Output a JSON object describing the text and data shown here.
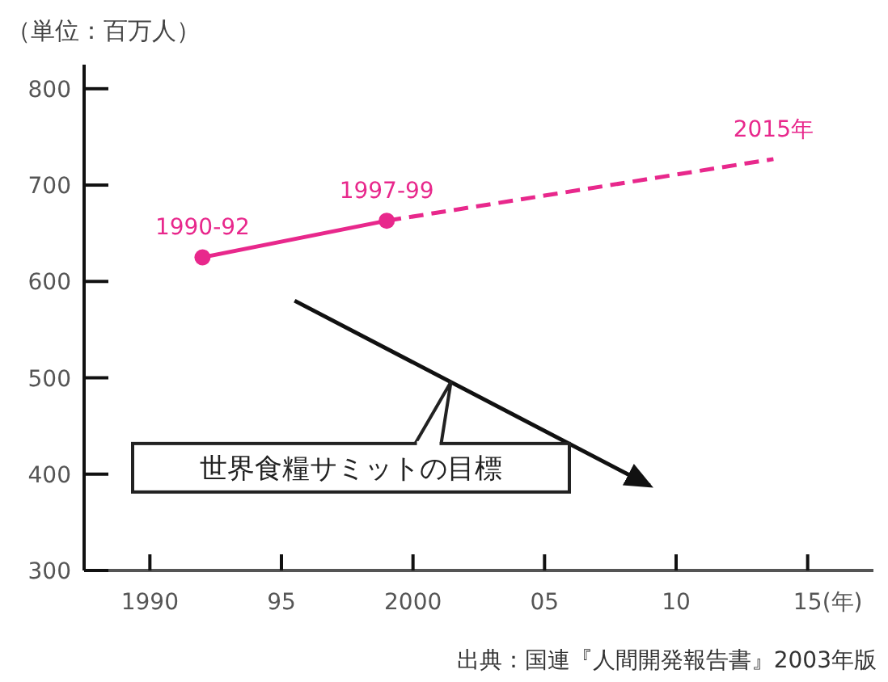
{
  "chart_data": {
    "type": "line",
    "ylabel": "（単位：百万人）",
    "xlim": [
      1987.5,
      2017.5
    ],
    "ylim": [
      300,
      825
    ],
    "xticks": [
      {
        "value": 1990,
        "label": "1990"
      },
      {
        "value": 1995,
        "label": "95"
      },
      {
        "value": 2000,
        "label": "2000"
      },
      {
        "value": 2005,
        "label": "05"
      },
      {
        "value": 2010,
        "label": "10"
      },
      {
        "value": 2015,
        "label": "15"
      }
    ],
    "xlabel": "(年)",
    "yticks": [
      300,
      400,
      500,
      600,
      700,
      800
    ],
    "grid": false,
    "series": [
      {
        "x": [
          1992,
          1999
        ],
        "values": [
          625,
          663
        ],
        "color": "#e8288c",
        "marker": "circle",
        "line_style": "solid"
      },
      {
        "x": [
          1999,
          2013.7
        ],
        "values": [
          663,
          727
        ],
        "color": "#e8288c",
        "marker": "none",
        "line_style": "dashed"
      },
      {
        "x": [
          1995.5,
          2009
        ],
        "values": [
          580,
          388
        ],
        "color": "#111111",
        "marker": "none",
        "line_style": "solid"
      }
    ],
    "annotations": [
      {
        "text": "1990-92",
        "x": 1992,
        "y": 625
      },
      {
        "text": "1997-99",
        "x": 1999,
        "y": 663
      },
      {
        "text": "2015年",
        "x": 2013.7,
        "y": 727
      },
      "世界食糧サミットの目標",
      "出典：国連『人間開発報告書』2003年版"
    ]
  }
}
